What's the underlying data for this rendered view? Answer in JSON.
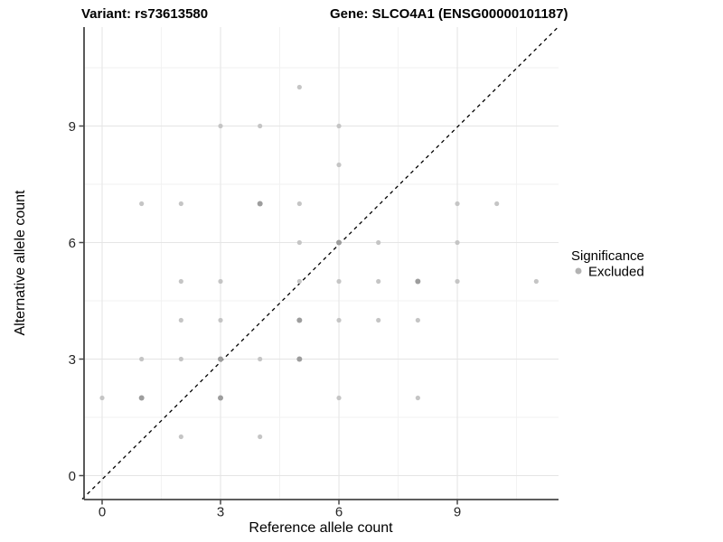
{
  "chart_data": {
    "type": "scatter",
    "titles": {
      "left": "Variant: rs73613580",
      "right": "Gene: SLCO4A1 (ENSG00000101187)"
    },
    "xlabel": "Reference allele count",
    "ylabel": "Alternative allele count",
    "x_ticks": [
      0,
      3,
      6,
      9
    ],
    "y_ticks": [
      0,
      3,
      6,
      9
    ],
    "x_minor": [
      1.5,
      4.5,
      7.5,
      10.5
    ],
    "y_minor": [
      1.5,
      4.5,
      7.5,
      10.5
    ],
    "xlim": [
      -0.46,
      11.56
    ],
    "ylim": [
      -0.6,
      11.55
    ],
    "grid": true,
    "legend": {
      "position": "right",
      "title": "Significance",
      "items": [
        {
          "label": "Excluded",
          "color": "#b3b3b3"
        }
      ]
    },
    "identity_line": {
      "equation": "y = x",
      "style": "dashed",
      "color": "#000000"
    },
    "points": [
      {
        "x": 5,
        "y": 10,
        "overlap": 1
      },
      {
        "x": 3,
        "y": 9,
        "overlap": 1
      },
      {
        "x": 4,
        "y": 9,
        "overlap": 1
      },
      {
        "x": 6,
        "y": 9,
        "overlap": 1
      },
      {
        "x": 6,
        "y": 8,
        "overlap": 1
      },
      {
        "x": 1,
        "y": 7,
        "overlap": 1
      },
      {
        "x": 2,
        "y": 7,
        "overlap": 1
      },
      {
        "x": 4,
        "y": 7,
        "overlap": 2
      },
      {
        "x": 5,
        "y": 7,
        "overlap": 1
      },
      {
        "x": 9,
        "y": 7,
        "overlap": 1
      },
      {
        "x": 10,
        "y": 7,
        "overlap": 1
      },
      {
        "x": 5,
        "y": 6,
        "overlap": 1
      },
      {
        "x": 6,
        "y": 6,
        "overlap": 2
      },
      {
        "x": 7,
        "y": 6,
        "overlap": 1
      },
      {
        "x": 9,
        "y": 6,
        "overlap": 1
      },
      {
        "x": 2,
        "y": 5,
        "overlap": 1
      },
      {
        "x": 3,
        "y": 5,
        "overlap": 1
      },
      {
        "x": 5,
        "y": 5,
        "overlap": 1
      },
      {
        "x": 6,
        "y": 5,
        "overlap": 1
      },
      {
        "x": 7,
        "y": 5,
        "overlap": 1
      },
      {
        "x": 8,
        "y": 5,
        "overlap": 2
      },
      {
        "x": 9,
        "y": 5,
        "overlap": 1
      },
      {
        "x": 11,
        "y": 5,
        "overlap": 1
      },
      {
        "x": 2,
        "y": 4,
        "overlap": 1
      },
      {
        "x": 3,
        "y": 4,
        "overlap": 1
      },
      {
        "x": 5,
        "y": 4,
        "overlap": 2
      },
      {
        "x": 6,
        "y": 4,
        "overlap": 1
      },
      {
        "x": 7,
        "y": 4,
        "overlap": 1
      },
      {
        "x": 8,
        "y": 4,
        "overlap": 1
      },
      {
        "x": 1,
        "y": 3,
        "overlap": 1
      },
      {
        "x": 2,
        "y": 3,
        "overlap": 1
      },
      {
        "x": 3,
        "y": 3,
        "overlap": 2
      },
      {
        "x": 4,
        "y": 3,
        "overlap": 1
      },
      {
        "x": 5,
        "y": 3,
        "overlap": 2
      },
      {
        "x": 0,
        "y": 2,
        "overlap": 1
      },
      {
        "x": 1,
        "y": 2,
        "overlap": 2
      },
      {
        "x": 3,
        "y": 2,
        "overlap": 2
      },
      {
        "x": 6,
        "y": 2,
        "overlap": 1
      },
      {
        "x": 8,
        "y": 2,
        "overlap": 1
      },
      {
        "x": 2,
        "y": 1,
        "overlap": 1
      },
      {
        "x": 4,
        "y": 1,
        "overlap": 1
      }
    ],
    "colors": {
      "point": "#c5c5c5",
      "point_overlap": "#9d9d9d",
      "grid_major": "#e5e5e5",
      "grid_minor": "#f2f2f2",
      "axis": "#474747",
      "tick_text": "#262626"
    }
  }
}
